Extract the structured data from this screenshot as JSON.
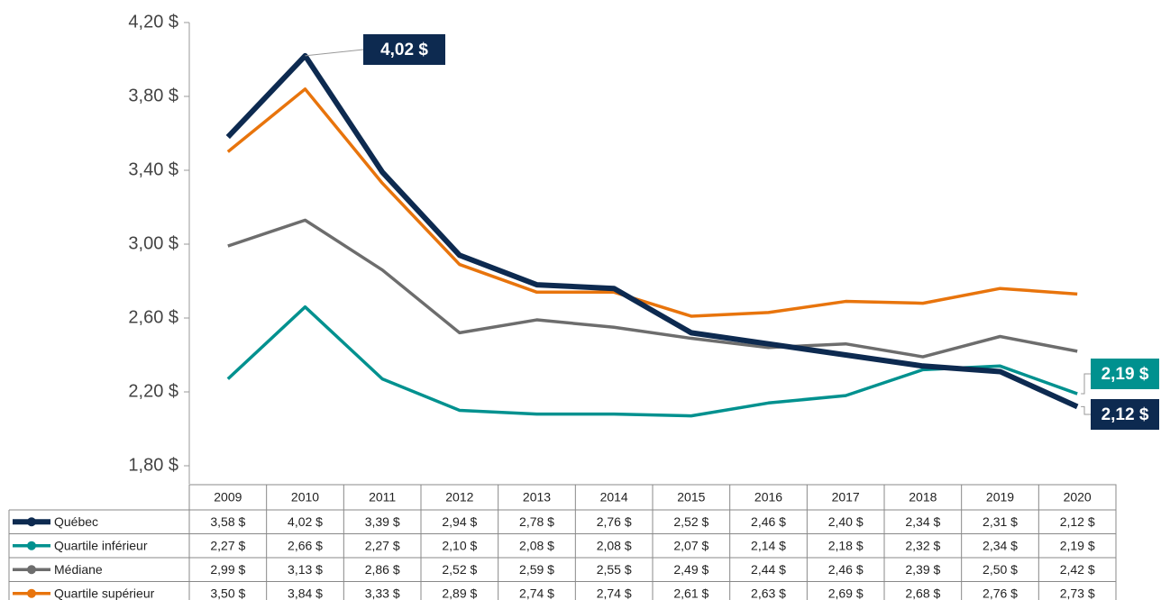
{
  "chart_data": {
    "type": "line",
    "categories": [
      "2009",
      "2010",
      "2011",
      "2012",
      "2013",
      "2014",
      "2015",
      "2016",
      "2017",
      "2018",
      "2019",
      "2020"
    ],
    "series": [
      {
        "name": "Québec",
        "color": "#0d2a50",
        "values": [
          3.58,
          4.02,
          3.39,
          2.94,
          2.78,
          2.76,
          2.52,
          2.46,
          2.4,
          2.34,
          2.31,
          2.12
        ],
        "value_labels": [
          "3,58 $",
          "4,02 $",
          "3,39 $",
          "2,94 $",
          "2,78 $",
          "2,76 $",
          "2,52 $",
          "2,46 $",
          "2,40 $",
          "2,34 $",
          "2,31 $",
          "2,12 $"
        ]
      },
      {
        "name": "Quartile inférieur",
        "color": "#00918f",
        "values": [
          2.27,
          2.66,
          2.27,
          2.1,
          2.08,
          2.08,
          2.07,
          2.14,
          2.18,
          2.32,
          2.34,
          2.19
        ],
        "value_labels": [
          "2,27 $",
          "2,66 $",
          "2,27 $",
          "2,10 $",
          "2,08 $",
          "2,08 $",
          "2,07 $",
          "2,14 $",
          "2,18 $",
          "2,32 $",
          "2,34 $",
          "2,19 $"
        ]
      },
      {
        "name": "Médiane",
        "color": "#6d6d6d",
        "values": [
          2.99,
          3.13,
          2.86,
          2.52,
          2.59,
          2.55,
          2.49,
          2.44,
          2.46,
          2.39,
          2.5,
          2.42
        ],
        "value_labels": [
          "2,99 $",
          "3,13 $",
          "2,86 $",
          "2,52 $",
          "2,59 $",
          "2,55 $",
          "2,49 $",
          "2,44 $",
          "2,46 $",
          "2,39 $",
          "2,50 $",
          "2,42 $"
        ]
      },
      {
        "name": "Quartile supérieur",
        "color": "#e8740c",
        "values": [
          3.5,
          3.84,
          3.33,
          2.89,
          2.74,
          2.74,
          2.61,
          2.63,
          2.69,
          2.68,
          2.76,
          2.73
        ],
        "value_labels": [
          "3,50 $",
          "3,84 $",
          "3,33 $",
          "2,89 $",
          "2,74 $",
          "2,74 $",
          "2,61 $",
          "2,63 $",
          "2,69 $",
          "2,68 $",
          "2,76 $",
          "2,73 $"
        ]
      }
    ],
    "ylim": [
      1.8,
      4.2
    ],
    "yticks": [
      {
        "value": 1.8,
        "label": "1,80 $"
      },
      {
        "value": 2.2,
        "label": "2,20 $"
      },
      {
        "value": 2.6,
        "label": "2,60 $"
      },
      {
        "value": 3.0,
        "label": "3,00 $"
      },
      {
        "value": 3.4,
        "label": "3,40 $"
      },
      {
        "value": 3.8,
        "label": "3,80 $"
      },
      {
        "value": 4.2,
        "label": "4,20 $"
      }
    ]
  }
}
